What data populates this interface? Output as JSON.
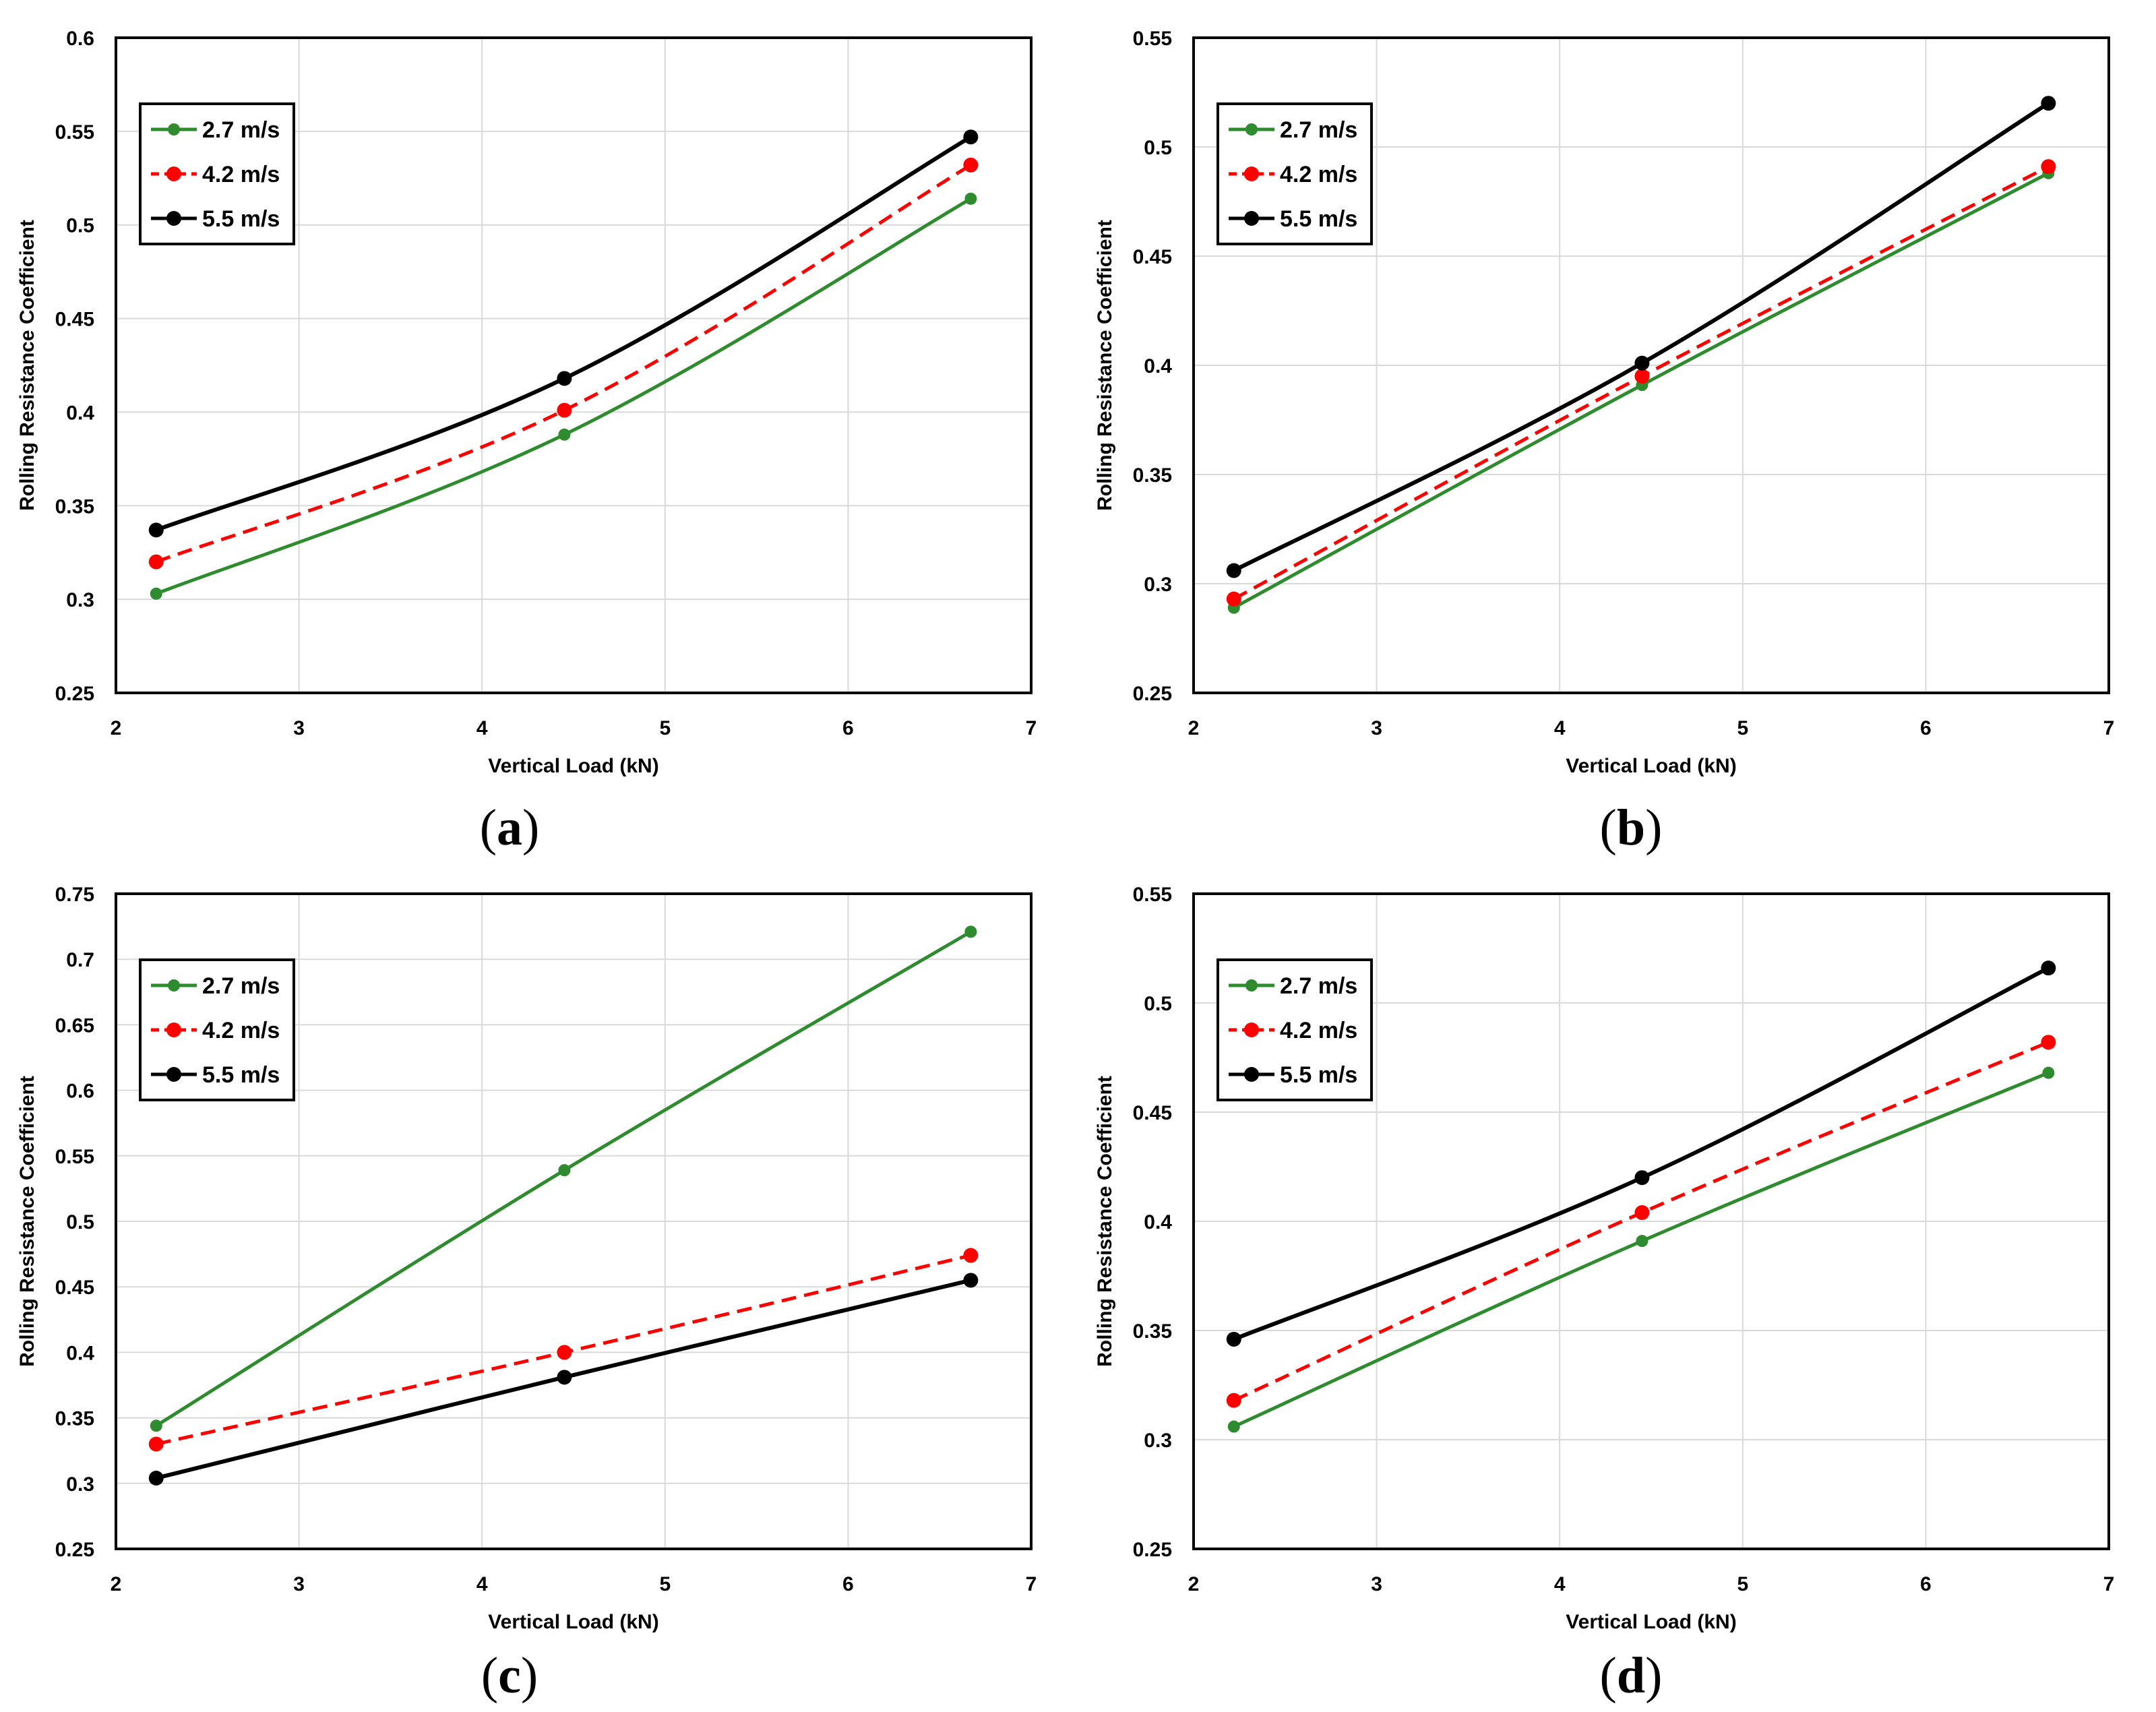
{
  "figure": {
    "panels": [
      {
        "id": "a",
        "label": "a"
      },
      {
        "id": "b",
        "label": "b"
      },
      {
        "id": "c",
        "label": "c"
      },
      {
        "id": "d",
        "label": "d"
      }
    ]
  },
  "colors": {
    "green": "#2e8b2e",
    "red": "#ff0000",
    "black": "#000000",
    "grid": "#d9d9d9"
  },
  "chart_data": [
    {
      "panel": "a",
      "type": "line",
      "xlabel": "Vertical Load (kN)",
      "ylabel": "Rolling Resistance Coefficient",
      "xlim": [
        2,
        7
      ],
      "ylim": [
        0.25,
        0.6
      ],
      "xticks": [
        "2",
        "3",
        "4",
        "5",
        "6",
        "7"
      ],
      "yticks": [
        "0.25",
        "0.3",
        "0.35",
        "0.4",
        "0.45",
        "0.5",
        "0.55",
        "0.6"
      ],
      "x": [
        2.22,
        4.45,
        6.67
      ],
      "legend_position": "top-left",
      "series": [
        {
          "name": "2.7 m/s",
          "color": "#2e8b2e",
          "dash": false,
          "values": [
            0.303,
            0.388,
            0.514
          ]
        },
        {
          "name": "4.2 m/s",
          "color": "#ff0000",
          "dash": true,
          "values": [
            0.32,
            0.401,
            0.532
          ]
        },
        {
          "name": "5.5 m/s",
          "color": "#000000",
          "dash": false,
          "values": [
            0.337,
            0.418,
            0.547
          ]
        }
      ]
    },
    {
      "panel": "b",
      "type": "line",
      "xlabel": "Vertical Load (kN)",
      "ylabel": "Rolling Resistance Coefficient",
      "xlim": [
        2,
        7
      ],
      "ylim": [
        0.25,
        0.55
      ],
      "xticks": [
        "2",
        "3",
        "4",
        "5",
        "6",
        "7"
      ],
      "yticks": [
        "0.25",
        "0.3",
        "0.35",
        "0.4",
        "0.45",
        "0.5",
        "0.55"
      ],
      "x": [
        2.22,
        4.45,
        6.67
      ],
      "legend_position": "top-left",
      "series": [
        {
          "name": "2.7 m/s",
          "color": "#2e8b2e",
          "dash": false,
          "values": [
            0.289,
            0.391,
            0.488
          ]
        },
        {
          "name": "4.2 m/s",
          "color": "#ff0000",
          "dash": true,
          "values": [
            0.293,
            0.395,
            0.491
          ]
        },
        {
          "name": "5.5 m/s",
          "color": "#000000",
          "dash": false,
          "values": [
            0.306,
            0.401,
            0.52
          ]
        }
      ]
    },
    {
      "panel": "c",
      "type": "line",
      "xlabel": "Vertical Load (kN)",
      "ylabel": "Rolling Resistance Coefficient",
      "xlim": [
        2,
        7
      ],
      "ylim": [
        0.25,
        0.75
      ],
      "xticks": [
        "2",
        "3",
        "4",
        "5",
        "6",
        "7"
      ],
      "yticks": [
        "0.25",
        "0.3",
        "0.35",
        "0.4",
        "0.45",
        "0.5",
        "0.55",
        "0.6",
        "0.65",
        "0.7",
        "0.75"
      ],
      "x": [
        2.22,
        4.45,
        6.67
      ],
      "legend_position": "top-left",
      "series": [
        {
          "name": "2.7 m/s",
          "color": "#2e8b2e",
          "dash": false,
          "values": [
            0.344,
            0.539,
            0.721
          ]
        },
        {
          "name": "4.2 m/s",
          "color": "#ff0000",
          "dash": true,
          "values": [
            0.33,
            0.4,
            0.474
          ]
        },
        {
          "name": "5.5 m/s",
          "color": "#000000",
          "dash": false,
          "values": [
            0.304,
            0.381,
            0.455
          ]
        }
      ]
    },
    {
      "panel": "d",
      "type": "line",
      "xlabel": "Vertical Load (kN)",
      "ylabel": "Rolling Resistance Coefficient",
      "xlim": [
        2,
        7
      ],
      "ylim": [
        0.25,
        0.55
      ],
      "xticks": [
        "2",
        "3",
        "4",
        "5",
        "6",
        "7"
      ],
      "yticks": [
        "0.25",
        "0.3",
        "0.35",
        "0.4",
        "0.45",
        "0.5",
        "0.55"
      ],
      "x": [
        2.22,
        4.45,
        6.67
      ],
      "legend_position": "top-left",
      "series": [
        {
          "name": "2.7 m/s",
          "color": "#2e8b2e",
          "dash": false,
          "values": [
            0.306,
            0.391,
            0.468
          ]
        },
        {
          "name": "4.2 m/s",
          "color": "#ff0000",
          "dash": true,
          "values": [
            0.318,
            0.404,
            0.482
          ]
        },
        {
          "name": "5.5 m/s",
          "color": "#000000",
          "dash": false,
          "values": [
            0.346,
            0.42,
            0.516
          ]
        }
      ]
    }
  ]
}
